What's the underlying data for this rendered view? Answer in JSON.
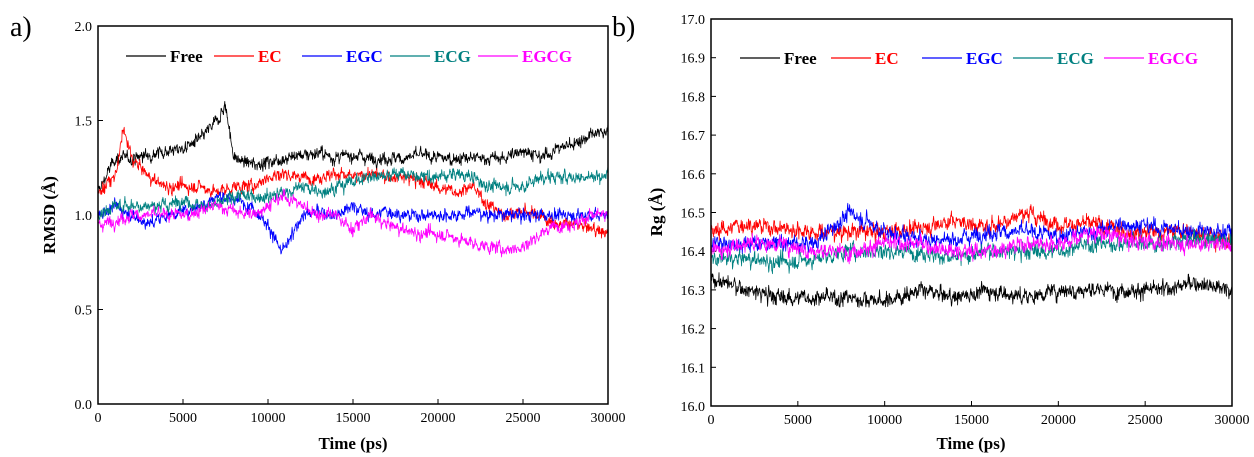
{
  "chart_data": [
    {
      "type": "line",
      "panel_label": "a)",
      "title": "",
      "xlabel": "Time (ps)",
      "ylabel": "RMSD (Å)",
      "xlim": [
        0,
        30000
      ],
      "ylim": [
        0.0,
        2.0
      ],
      "xticks": [
        0,
        5000,
        10000,
        15000,
        20000,
        25000,
        30000
      ],
      "yticks": [
        "0.0",
        "0.5",
        "1.0",
        "1.5",
        "2.0"
      ],
      "legend_position": "top",
      "series": [
        {
          "name": "Free",
          "color": "#000000",
          "x": [
            0,
            1000,
            2000,
            3000,
            4000,
            5000,
            6000,
            7000,
            7500,
            8000,
            9000,
            10000,
            11000,
            12000,
            13000,
            14000,
            15000,
            16000,
            17000,
            18000,
            19000,
            20000,
            21000,
            22000,
            23000,
            24000,
            25000,
            26000,
            27000,
            28000,
            29000,
            30000
          ],
          "y": [
            1.12,
            1.3,
            1.3,
            1.32,
            1.34,
            1.35,
            1.4,
            1.5,
            1.58,
            1.3,
            1.27,
            1.28,
            1.3,
            1.32,
            1.33,
            1.3,
            1.32,
            1.3,
            1.3,
            1.3,
            1.32,
            1.3,
            1.3,
            1.3,
            1.3,
            1.3,
            1.35,
            1.3,
            1.35,
            1.38,
            1.42,
            1.45
          ]
        },
        {
          "name": "EC",
          "color": "#ff0000",
          "x": [
            0,
            1000,
            1500,
            2000,
            3000,
            4000,
            5000,
            6000,
            7000,
            8000,
            9000,
            10000,
            11000,
            12000,
            13000,
            14000,
            15000,
            16000,
            17000,
            18000,
            19000,
            20000,
            21000,
            22000,
            23000,
            24000,
            25000,
            26000,
            27000,
            28000,
            29000,
            30000
          ],
          "y": [
            1.12,
            1.2,
            1.45,
            1.3,
            1.2,
            1.15,
            1.15,
            1.15,
            1.12,
            1.15,
            1.15,
            1.2,
            1.22,
            1.2,
            1.2,
            1.22,
            1.2,
            1.22,
            1.2,
            1.2,
            1.18,
            1.15,
            1.12,
            1.15,
            1.05,
            1.0,
            1.02,
            1.0,
            0.95,
            0.95,
            0.93,
            0.9
          ]
        },
        {
          "name": "EGC",
          "color": "#0000ff",
          "x": [
            0,
            1000,
            2000,
            3000,
            4000,
            5000,
            6000,
            7000,
            8000,
            9000,
            10000,
            10800,
            11500,
            12000,
            13000,
            14000,
            15000,
            16000,
            17000,
            18000,
            19000,
            20000,
            21000,
            22000,
            23000,
            24000,
            25000,
            26000,
            27000,
            28000,
            29000,
            30000
          ],
          "y": [
            1.0,
            1.05,
            1.0,
            0.95,
            1.0,
            1.02,
            1.05,
            1.1,
            1.08,
            1.05,
            0.95,
            0.8,
            0.9,
            1.0,
            1.02,
            1.0,
            1.05,
            1.0,
            1.02,
            1.0,
            1.0,
            1.0,
            1.0,
            1.02,
            1.0,
            1.0,
            1.0,
            1.0,
            1.0,
            1.0,
            1.0,
            1.0
          ]
        },
        {
          "name": "ECG",
          "color": "#008080",
          "x": [
            0,
            1000,
            2000,
            3000,
            4000,
            5000,
            6000,
            7000,
            8000,
            9000,
            10000,
            11000,
            12000,
            13000,
            14000,
            15000,
            16000,
            17000,
            18000,
            19000,
            20000,
            21000,
            22000,
            23000,
            24000,
            25000,
            26000,
            27000,
            28000,
            29000,
            30000
          ],
          "y": [
            1.0,
            1.05,
            1.05,
            1.05,
            1.05,
            1.08,
            1.05,
            1.05,
            1.1,
            1.1,
            1.1,
            1.12,
            1.15,
            1.12,
            1.15,
            1.18,
            1.2,
            1.22,
            1.22,
            1.2,
            1.2,
            1.22,
            1.2,
            1.15,
            1.15,
            1.15,
            1.2,
            1.2,
            1.2,
            1.2,
            1.22
          ]
        },
        {
          "name": "EGCG",
          "color": "#ff00ff",
          "x": [
            0,
            1000,
            2000,
            3000,
            4000,
            5000,
            6000,
            7000,
            8000,
            9000,
            10000,
            11000,
            12000,
            13000,
            14000,
            15000,
            16000,
            17000,
            18000,
            19000,
            20000,
            21000,
            22000,
            23000,
            24000,
            25000,
            26000,
            27000,
            28000,
            29000,
            30000
          ],
          "y": [
            0.95,
            0.97,
            1.0,
            1.0,
            1.0,
            1.0,
            1.02,
            1.05,
            1.02,
            1.0,
            1.05,
            1.1,
            1.05,
            1.0,
            1.0,
            0.92,
            1.0,
            0.95,
            0.92,
            0.9,
            0.9,
            0.88,
            0.85,
            0.83,
            0.82,
            0.83,
            0.9,
            0.95,
            0.95,
            1.0,
            1.0
          ]
        }
      ]
    },
    {
      "type": "line",
      "panel_label": "b)",
      "title": "",
      "xlabel": "Time (ps)",
      "ylabel": "Rg (Å)",
      "xlim": [
        0,
        30000
      ],
      "ylim": [
        16.0,
        17.0
      ],
      "xticks": [
        0,
        5000,
        10000,
        15000,
        20000,
        25000,
        30000
      ],
      "yticks": [
        "16.0",
        "16.1",
        "16.2",
        "16.3",
        "16.4",
        "16.5",
        "16.6",
        "16.7",
        "16.8",
        "16.9",
        "17.0"
      ],
      "legend_position": "top",
      "series": [
        {
          "name": "Free",
          "color": "#000000",
          "x": [
            0,
            2000,
            4000,
            6000,
            8000,
            10000,
            12000,
            14000,
            16000,
            18000,
            20000,
            22000,
            24000,
            26000,
            28000,
            30000
          ],
          "y": [
            16.33,
            16.3,
            16.28,
            16.28,
            16.28,
            16.27,
            16.3,
            16.28,
            16.3,
            16.28,
            16.3,
            16.3,
            16.3,
            16.3,
            16.32,
            16.3
          ]
        },
        {
          "name": "EC",
          "color": "#ff0000",
          "x": [
            0,
            2000,
            4000,
            6000,
            8000,
            10000,
            12000,
            14000,
            16000,
            18000,
            20000,
            22000,
            24000,
            26000,
            28000,
            30000
          ],
          "y": [
            16.45,
            16.47,
            16.46,
            16.45,
            16.45,
            16.45,
            16.46,
            16.48,
            16.46,
            16.5,
            16.47,
            16.47,
            16.45,
            16.45,
            16.45,
            16.42
          ]
        },
        {
          "name": "EGC",
          "color": "#0000ff",
          "x": [
            0,
            2000,
            4000,
            6000,
            8000,
            10000,
            12000,
            14000,
            16000,
            18000,
            20000,
            22000,
            24000,
            26000,
            28000,
            30000
          ],
          "y": [
            16.42,
            16.42,
            16.42,
            16.42,
            16.5,
            16.45,
            16.43,
            16.43,
            16.45,
            16.45,
            16.44,
            16.45,
            16.47,
            16.46,
            16.45,
            16.45
          ]
        },
        {
          "name": "ECG",
          "color": "#008080",
          "x": [
            0,
            2000,
            4000,
            6000,
            8000,
            10000,
            12000,
            14000,
            16000,
            18000,
            20000,
            22000,
            24000,
            26000,
            28000,
            30000
          ],
          "y": [
            16.38,
            16.38,
            16.37,
            16.38,
            16.4,
            16.4,
            16.4,
            16.38,
            16.4,
            16.4,
            16.4,
            16.42,
            16.42,
            16.42,
            16.43,
            16.43
          ]
        },
        {
          "name": "EGCG",
          "color": "#ff00ff",
          "x": [
            0,
            2000,
            4000,
            6000,
            8000,
            10000,
            12000,
            14000,
            16000,
            18000,
            20000,
            22000,
            24000,
            26000,
            28000,
            30000
          ],
          "y": [
            16.4,
            16.42,
            16.42,
            16.4,
            16.4,
            16.42,
            16.42,
            16.4,
            16.4,
            16.42,
            16.42,
            16.45,
            16.43,
            16.42,
            16.42,
            16.42
          ]
        }
      ]
    }
  ]
}
